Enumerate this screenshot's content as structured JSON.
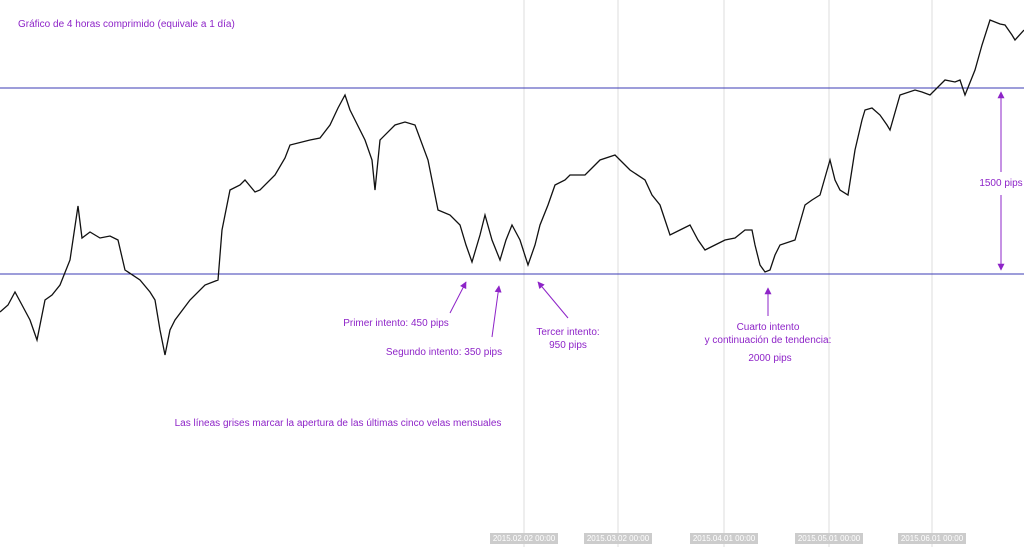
{
  "header": {
    "title": "Gráfico de 4 horas comprimido (equivale a 1 día)"
  },
  "annotations": {
    "first": "Primer intento: 450 pips",
    "second": "Segundo intento: 350 pips",
    "third": [
      "Tercer intento:",
      "950 pips"
    ],
    "fourth": [
      "Cuarto intento",
      "y continuación de tendencia:",
      "2000 pips"
    ],
    "range": "1500 pips",
    "note": "Las líneas grises marcar la apertura de las últimas cinco velas mensuales"
  },
  "dates": [
    "2015.02.02 00:00",
    "2015.03.02 00:00",
    "2015.04.01 00:00",
    "2015.05.01 00:00",
    "2015.06.01 00:00"
  ]
}
